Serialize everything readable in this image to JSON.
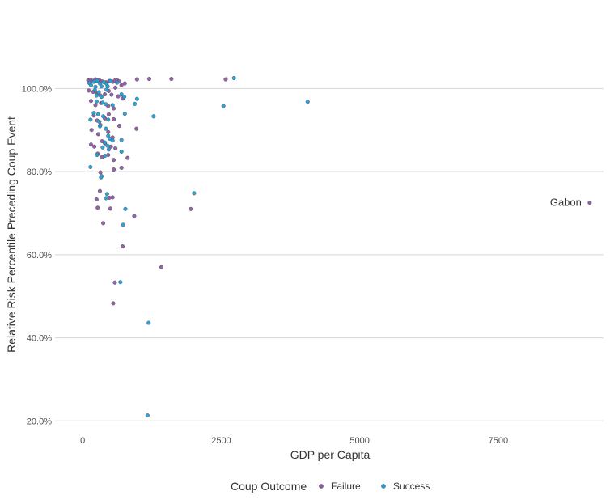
{
  "chart_data": {
    "type": "scatter",
    "title": "",
    "xlabel": "GDP per Capita",
    "ylabel": "Relative Risk Percentile Preceding Coup Event",
    "xlim": [
      -500,
      9400
    ],
    "ylim": [
      18.5,
      110
    ],
    "x_ticks": [
      0,
      2500,
      5000,
      7500
    ],
    "x_tick_labels": [
      "0",
      "2500",
      "5000",
      "7500"
    ],
    "y_ticks": [
      20,
      40,
      60,
      80,
      100
    ],
    "y_tick_labels": [
      "20.0%",
      "40.0%",
      "60.0%",
      "80.0%",
      "100.0%"
    ],
    "grid": "horizontal major",
    "legend": {
      "title": "Coup Outcome",
      "position": "bottom",
      "entries": [
        "Failure",
        "Success"
      ]
    },
    "annotations": [
      {
        "text": "Gabon",
        "x": 9150,
        "y": 72.5
      }
    ],
    "series": [
      {
        "name": "Failure",
        "color": "#8e5aa8",
        "points": [
          [
            100,
            102
          ],
          [
            140,
            102.1
          ],
          [
            180,
            101.8
          ],
          [
            230,
            102.2
          ],
          [
            260,
            101.9
          ],
          [
            300,
            102
          ],
          [
            350,
            101.7
          ],
          [
            420,
            101.5
          ],
          [
            480,
            101.8
          ],
          [
            540,
            101.6
          ],
          [
            580,
            101.9
          ],
          [
            620,
            102
          ],
          [
            660,
            101.7
          ],
          [
            700,
            100.8
          ],
          [
            760,
            101.2
          ],
          [
            980,
            102.2
          ],
          [
            1200,
            102.3
          ],
          [
            1600,
            102.3
          ],
          [
            2580,
            102.2
          ],
          [
            110,
            99.5
          ],
          [
            190,
            99.2
          ],
          [
            260,
            98.8
          ],
          [
            320,
            98.3
          ],
          [
            400,
            98.6
          ],
          [
            470,
            99.4
          ],
          [
            520,
            98.5
          ],
          [
            590,
            100.2
          ],
          [
            640,
            98.1
          ],
          [
            720,
            97.6
          ],
          [
            150,
            97
          ],
          [
            230,
            96
          ],
          [
            330,
            96.5
          ],
          [
            460,
            95.8
          ],
          [
            560,
            95.2
          ],
          [
            200,
            93.5
          ],
          [
            260,
            92.3
          ],
          [
            320,
            91.2
          ],
          [
            400,
            92.8
          ],
          [
            470,
            93.8
          ],
          [
            560,
            92.6
          ],
          [
            160,
            90
          ],
          [
            280,
            89
          ],
          [
            460,
            89.5
          ],
          [
            540,
            88.2
          ],
          [
            660,
            91
          ],
          [
            970,
            90.3
          ],
          [
            150,
            86.5
          ],
          [
            210,
            86
          ],
          [
            350,
            87.3
          ],
          [
            400,
            86.8
          ],
          [
            510,
            86
          ],
          [
            590,
            85.6
          ],
          [
            270,
            84.3
          ],
          [
            350,
            83.5
          ],
          [
            460,
            84
          ],
          [
            560,
            82.8
          ],
          [
            810,
            83.3
          ],
          [
            320,
            79.8
          ],
          [
            560,
            80.5
          ],
          [
            700,
            80.9
          ],
          [
            310,
            75.3
          ],
          [
            250,
            73.3
          ],
          [
            480,
            73.7
          ],
          [
            540,
            73.8
          ],
          [
            270,
            71.3
          ],
          [
            500,
            71.1
          ],
          [
            930,
            69.3
          ],
          [
            1950,
            71
          ],
          [
            370,
            67.6
          ],
          [
            720,
            62
          ],
          [
            1420,
            57
          ],
          [
            580,
            53.3
          ],
          [
            550,
            48.3
          ],
          [
            9150,
            72.5
          ]
        ]
      },
      {
        "name": "Success",
        "color": "#1f9fd9",
        "points": [
          [
            120,
            101.3
          ],
          [
            200,
            101.6
          ],
          [
            260,
            101.9
          ],
          [
            310,
            101.2
          ],
          [
            380,
            101.5
          ],
          [
            430,
            101.1
          ],
          [
            500,
            101.8
          ],
          [
            620,
            101.4
          ],
          [
            2730,
            102.5
          ],
          [
            150,
            100.8
          ],
          [
            230,
            100.4
          ],
          [
            340,
            100.5
          ],
          [
            450,
            100.5
          ],
          [
            220,
            99.6
          ],
          [
            290,
            99.1
          ],
          [
            430,
            99.7
          ],
          [
            250,
            98.3
          ],
          [
            340,
            98
          ],
          [
            700,
            98.6
          ],
          [
            750,
            98
          ],
          [
            250,
            96.9
          ],
          [
            360,
            96.6
          ],
          [
            420,
            96.2
          ],
          [
            540,
            96
          ],
          [
            980,
            97.5
          ],
          [
            940,
            96.3
          ],
          [
            2540,
            95.8
          ],
          [
            4060,
            96.8
          ],
          [
            200,
            94.1
          ],
          [
            280,
            93.8
          ],
          [
            370,
            93.3
          ],
          [
            460,
            92.5
          ],
          [
            760,
            93.9
          ],
          [
            1280,
            93.3
          ],
          [
            140,
            92.5
          ],
          [
            300,
            92
          ],
          [
            310,
            90.9
          ],
          [
            420,
            90.3
          ],
          [
            460,
            88.6
          ],
          [
            490,
            87.9
          ],
          [
            540,
            87.5
          ],
          [
            700,
            87.6
          ],
          [
            400,
            87
          ],
          [
            450,
            86.2
          ],
          [
            360,
            85.8
          ],
          [
            470,
            85.3
          ],
          [
            700,
            84.8
          ],
          [
            260,
            84
          ],
          [
            400,
            83.8
          ],
          [
            140,
            81.1
          ],
          [
            340,
            78.9
          ],
          [
            330,
            78.6
          ],
          [
            2010,
            74.8
          ],
          [
            440,
            74.6
          ],
          [
            420,
            73.6
          ],
          [
            770,
            71
          ],
          [
            730,
            67.2
          ],
          [
            680,
            53.4
          ],
          [
            1190,
            43.6
          ],
          [
            1170,
            21.3
          ]
        ]
      }
    ]
  }
}
